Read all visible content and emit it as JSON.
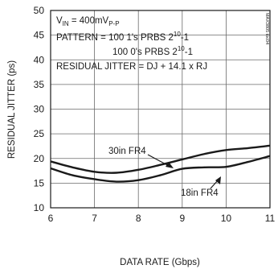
{
  "chart_data": {
    "type": "line",
    "xlabel": "DATA RATE (Gbps)",
    "ylabel": "RESIDUAL JITTER (ps)",
    "xlim": [
      6,
      11
    ],
    "ylim": [
      10,
      50
    ],
    "x_ticks": [
      6,
      7,
      8,
      9,
      10,
      11
    ],
    "y_ticks": [
      10,
      15,
      20,
      25,
      30,
      35,
      40,
      45,
      50
    ],
    "grid": true,
    "series": [
      {
        "name": "30in FR4",
        "x": [
          6.0,
          6.5,
          7.0,
          7.5,
          8.0,
          8.5,
          9.0,
          9.5,
          10.0,
          10.5,
          11.0
        ],
        "y": [
          19.4,
          18.2,
          17.3,
          17.1,
          17.7,
          18.7,
          19.8,
          20.9,
          21.7,
          22.1,
          22.6
        ]
      },
      {
        "name": "18in FR4",
        "x": [
          6.0,
          6.5,
          7.0,
          7.5,
          8.0,
          8.5,
          9.0,
          9.5,
          10.0,
          10.5,
          11.0
        ],
        "y": [
          18.0,
          16.6,
          15.8,
          15.3,
          15.6,
          16.6,
          17.9,
          18.2,
          18.3,
          19.3,
          20.5
        ]
      }
    ],
    "annotations": {
      "vin_main": "V",
      "vin_sub": "IN",
      "vin_rest": " = 400mV",
      "vin_unit_sub": "P-P",
      "pattern_line1": "PATTERN = 100 1's PRBS 2",
      "pattern_exp1": "10",
      "pattern_tail1": "-1",
      "pattern_line2": "100 0's PRBS 2",
      "pattern_exp2": "10",
      "pattern_tail2": "-1",
      "residual": "RESIDUAL JITTER = DJ + 14.1 x RJ",
      "label_30in": "30in FR4",
      "label_18in": "18in FR4",
      "side_code": "MAX3805 toc04"
    }
  }
}
